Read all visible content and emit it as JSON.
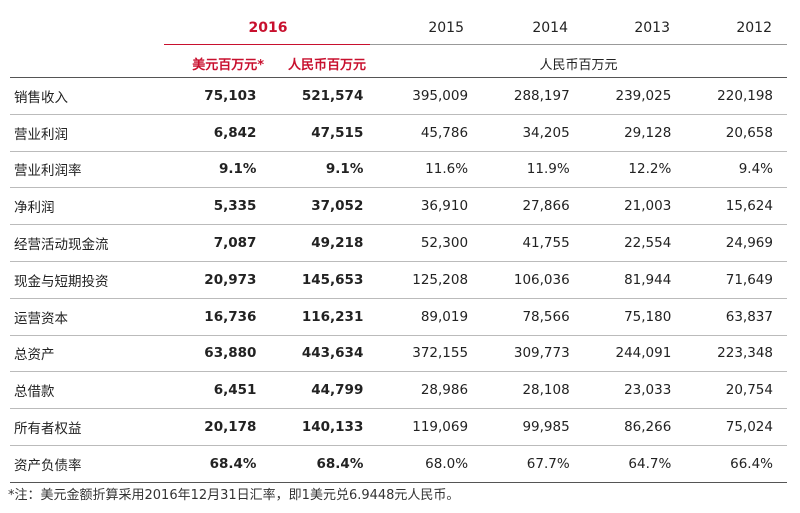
{
  "header": {
    "years": [
      "2016",
      "2015",
      "2014",
      "2013",
      "2012"
    ],
    "unit_usd": "美元百万元*",
    "unit_rmb": "人民币百万元",
    "unit_rmb_history": "人民币百万元"
  },
  "rows": [
    {
      "label": "销售收入",
      "values": [
        "75,103",
        "521,574",
        "395,009",
        "288,197",
        "239,025",
        "220,198"
      ]
    },
    {
      "label": "营业利润",
      "values": [
        "6,842",
        "47,515",
        "45,786",
        "34,205",
        "29,128",
        "20,658"
      ]
    },
    {
      "label": "营业利润率",
      "values": [
        "9.1%",
        "9.1%",
        "11.6%",
        "11.9%",
        "12.2%",
        "9.4%"
      ]
    },
    {
      "label": "净利润",
      "values": [
        "5,335",
        "37,052",
        "36,910",
        "27,866",
        "21,003",
        "15,624"
      ]
    },
    {
      "label": "经营活动现金流",
      "values": [
        "7,087",
        "49,218",
        "52,300",
        "41,755",
        "22,554",
        "24,969"
      ]
    },
    {
      "label": "现金与短期投资",
      "values": [
        "20,973",
        "145,653",
        "125,208",
        "106,036",
        "81,944",
        "71,649"
      ]
    },
    {
      "label": "运营资本",
      "values": [
        "16,736",
        "116,231",
        "89,019",
        "78,566",
        "75,180",
        "63,837"
      ]
    },
    {
      "label": "总资产",
      "values": [
        "63,880",
        "443,634",
        "372,155",
        "309,773",
        "244,091",
        "223,348"
      ]
    },
    {
      "label": "总借款",
      "values": [
        "6,451",
        "44,799",
        "28,986",
        "28,108",
        "23,033",
        "20,754"
      ]
    },
    {
      "label": "所有者权益",
      "values": [
        "20,178",
        "140,133",
        "119,069",
        "99,985",
        "86,266",
        "75,024"
      ]
    },
    {
      "label": "资产负债率",
      "values": [
        "68.4%",
        "68.4%",
        "68.0%",
        "67.7%",
        "64.7%",
        "66.4%"
      ]
    }
  ],
  "footnote": "*注：美元金额折算采用2016年12月31日汇率，即1美元兑6.9448元人民币。",
  "colors": {
    "accent": "#c8102e"
  }
}
